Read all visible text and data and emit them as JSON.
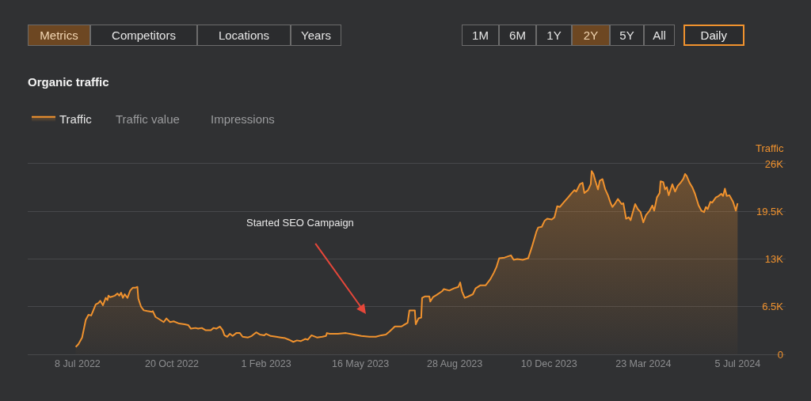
{
  "chart_data": {
    "type": "area",
    "title": "Organic traffic",
    "ylabel": "Traffic",
    "x": [
      "2022-07-06",
      "2022-07-09",
      "2022-07-13",
      "2022-07-17",
      "2022-07-20",
      "2022-07-23",
      "2022-07-25",
      "2022-07-28",
      "2022-07-31",
      "2022-08-02",
      "2022-08-05",
      "2022-08-08",
      "2022-08-10",
      "2022-08-11",
      "2022-08-13",
      "2022-08-18",
      "2022-08-21",
      "2022-08-23",
      "2022-08-25",
      "2022-08-27",
      "2022-08-29",
      "2022-09-01",
      "2022-09-04",
      "2022-09-07",
      "2022-09-10",
      "2022-09-12",
      "2022-09-13",
      "2022-09-16",
      "2022-09-19",
      "2022-09-23",
      "2022-09-28",
      "2022-09-29",
      "2022-10-02",
      "2022-10-06",
      "2022-10-11",
      "2022-10-14",
      "2022-10-18",
      "2022-10-22",
      "2022-10-28",
      "2022-11-03",
      "2022-11-07",
      "2022-11-10",
      "2022-11-15",
      "2022-11-18",
      "2022-11-22",
      "2022-11-26",
      "2022-12-02",
      "2022-12-05",
      "2022-12-08",
      "2022-12-12",
      "2022-12-15",
      "2022-12-17",
      "2022-12-20",
      "2022-12-23",
      "2022-12-26",
      "2022-12-30",
      "2023-01-03",
      "2023-01-06",
      "2023-01-12",
      "2023-01-16",
      "2023-01-21",
      "2023-01-25",
      "2023-01-30",
      "2023-02-01",
      "2023-02-06",
      "2023-02-12",
      "2023-02-17",
      "2023-02-22",
      "2023-02-26",
      "2023-03-03",
      "2023-03-07",
      "2023-03-11",
      "2023-03-16",
      "2023-03-19",
      "2023-03-23",
      "2023-03-29",
      "2023-04-04",
      "2023-04-08",
      "2023-04-09",
      "2023-04-12",
      "2023-04-21",
      "2023-04-30",
      "2023-05-09",
      "2023-05-17",
      "2023-05-26",
      "2023-06-02",
      "2023-06-08",
      "2023-06-13",
      "2023-06-17",
      "2023-06-23",
      "2023-06-30",
      "2023-07-07",
      "2023-07-09",
      "2023-07-15",
      "2023-07-16",
      "2023-07-19",
      "2023-07-22",
      "2023-07-23",
      "2023-07-26",
      "2023-07-31",
      "2023-08-01",
      "2023-08-04",
      "2023-08-08",
      "2023-08-14",
      "2023-08-16",
      "2023-08-22",
      "2023-08-27",
      "2023-09-01",
      "2023-09-03",
      "2023-09-05",
      "2023-09-08",
      "2023-09-12",
      "2023-09-17",
      "2023-09-20",
      "2023-09-25",
      "2023-10-01",
      "2023-10-06",
      "2023-10-10",
      "2023-10-13",
      "2023-10-16",
      "2023-10-22",
      "2023-10-29",
      "2023-11-01",
      "2023-11-05",
      "2023-11-11",
      "2023-11-17",
      "2023-11-21",
      "2023-11-26",
      "2023-11-28",
      "2023-12-02",
      "2023-12-05",
      "2023-12-08",
      "2023-12-13",
      "2023-12-16",
      "2023-12-19",
      "2023-12-22",
      "2023-12-26",
      "2023-12-31",
      "2024-01-04",
      "2024-01-07",
      "2024-01-09",
      "2024-01-13",
      "2024-01-16",
      "2024-01-18",
      "2024-01-22",
      "2024-01-25",
      "2024-01-26",
      "2024-01-28",
      "2024-01-30",
      "2024-02-02",
      "2024-02-04",
      "2024-02-07",
      "2024-02-10",
      "2024-02-13",
      "2024-02-16",
      "2024-02-18",
      "2024-02-21",
      "2024-02-24",
      "2024-02-28",
      "2024-03-01",
      "2024-03-04",
      "2024-03-07",
      "2024-03-09",
      "2024-03-11",
      "2024-03-14",
      "2024-03-17",
      "2024-03-20",
      "2024-03-23",
      "2024-03-26",
      "2024-03-30",
      "2024-04-02",
      "2024-04-04",
      "2024-04-07",
      "2024-04-10",
      "2024-04-11",
      "2024-04-14",
      "2024-04-16",
      "2024-04-18",
      "2024-04-20",
      "2024-04-24",
      "2024-04-27",
      "2024-04-30",
      "2024-05-03",
      "2024-05-06",
      "2024-05-08",
      "2024-05-10",
      "2024-05-13",
      "2024-05-16",
      "2024-05-19",
      "2024-05-23",
      "2024-05-26",
      "2024-05-29",
      "2024-05-31",
      "2024-06-02",
      "2024-06-05",
      "2024-06-07",
      "2024-06-11",
      "2024-06-14",
      "2024-06-17",
      "2024-06-19",
      "2024-06-21",
      "2024-06-23",
      "2024-06-26",
      "2024-06-30",
      "2024-07-03",
      "2024-07-05"
    ],
    "series": [
      {
        "name": "Traffic",
        "color": "#f0922e",
        "values": [
          1000,
          1400,
          2300,
          4700,
          5400,
          5300,
          5900,
          6800,
          7000,
          7300,
          6700,
          7700,
          7400,
          8000,
          7800,
          8000,
          8300,
          8000,
          8400,
          7700,
          8200,
          7700,
          8700,
          9100,
          9100,
          9200,
          7600,
          6500,
          6000,
          5900,
          5800,
          5900,
          5100,
          4800,
          4400,
          4900,
          4400,
          4500,
          4200,
          4100,
          4000,
          3500,
          3600,
          3500,
          3600,
          3300,
          3300,
          3600,
          3500,
          3800,
          3300,
          2600,
          2400,
          2800,
          2500,
          2900,
          2900,
          2400,
          2300,
          2500,
          3000,
          2700,
          2600,
          2800,
          2500,
          2400,
          2300,
          2200,
          2000,
          1700,
          1900,
          1800,
          2100,
          2000,
          2600,
          2300,
          2400,
          2500,
          2900,
          2800,
          2800,
          2900,
          2700,
          2500,
          2400,
          2400,
          2600,
          2700,
          3100,
          3800,
          3800,
          4300,
          6000,
          6000,
          4100,
          4900,
          5000,
          7700,
          7900,
          7900,
          7200,
          7800,
          8100,
          8600,
          8900,
          8700,
          9000,
          9200,
          9800,
          8600,
          7700,
          7900,
          8200,
          9000,
          9400,
          9400,
          10200,
          11100,
          11900,
          13100,
          13200,
          13500,
          12900,
          13000,
          12900,
          13100,
          14600,
          16700,
          17300,
          17400,
          18200,
          18500,
          18400,
          18700,
          20200,
          20100,
          20700,
          21400,
          22000,
          22400,
          22200,
          23200,
          23400,
          22000,
          22400,
          23200,
          25000,
          24600,
          23700,
          22500,
          23700,
          23900,
          22500,
          21700,
          20600,
          20100,
          20600,
          21200,
          20500,
          20600,
          18500,
          18700,
          18300,
          19200,
          20500,
          19800,
          19400,
          18000,
          19000,
          19600,
          20300,
          19600,
          21400,
          22000,
          23600,
          23500,
          22500,
          22800,
          21700,
          23200,
          22200,
          23000,
          23400,
          23900,
          24600,
          24300,
          23400,
          22800,
          21900,
          20300,
          19600,
          19400,
          20100,
          19800,
          20800,
          20700,
          21400,
          21600,
          21900,
          21600,
          22600,
          21600,
          21700,
          20800,
          19600,
          20600
        ]
      }
    ],
    "xlim": [
      "2022-05-14",
      "2024-08-27"
    ],
    "xticks": [
      {
        "value": "2022-07-08",
        "label": "8 Jul 2022"
      },
      {
        "value": "2022-10-20",
        "label": "20 Oct 2022"
      },
      {
        "value": "2023-02-01",
        "label": "1 Feb 2023"
      },
      {
        "value": "2023-05-16",
        "label": "16 May 2023"
      },
      {
        "value": "2023-08-28",
        "label": "28 Aug 2023"
      },
      {
        "value": "2023-12-10",
        "label": "10 Dec 2023"
      },
      {
        "value": "2024-03-23",
        "label": "23 Mar 2024"
      },
      {
        "value": "2024-07-05",
        "label": "5 Jul 2024"
      }
    ],
    "ylim": [
      0,
      26000
    ],
    "yticks": [
      0,
      {
        "value": 6500,
        "label": "6.5K"
      },
      {
        "value": 13000,
        "label": "13K"
      },
      {
        "value": 19500,
        "label": "19.5K"
      },
      {
        "value": 26000,
        "label": "26K"
      }
    ],
    "grid": "y",
    "legend": "top left",
    "marker": "none",
    "line_style": "solid",
    "annotations": [
      "Started SEO Campaign",
      "Metrics",
      "Competitors",
      "Locations",
      "Years",
      "1M",
      "6M",
      "1Y",
      "2Y",
      "5Y",
      "All",
      "Daily",
      "Traffic value",
      "Impressions"
    ]
  }
}
